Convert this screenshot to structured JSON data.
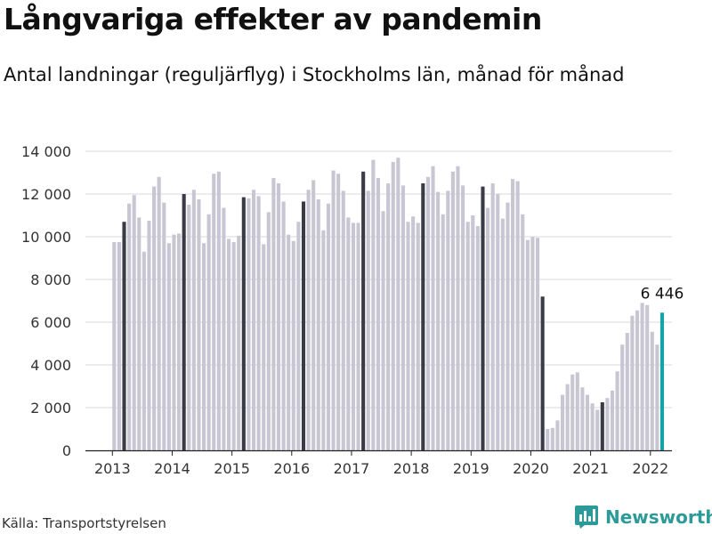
{
  "title": "Långvariga effekter av pandemin",
  "subtitle": "Antal landningar (reguljärflyg) i Stockholms län, månad för månad",
  "source": "Källa: Transportstyrelsen",
  "brand": "Newsworthy",
  "colors": {
    "bar": "#c8c6d3",
    "highlight": "#3b3b48",
    "latest": "#14a3a8",
    "grid": "#d9d9d9",
    "axis": "#222222",
    "brand": "#2b9a98"
  },
  "chart_data": {
    "type": "bar",
    "x_start": "2013-01",
    "ylim": [
      0,
      14000
    ],
    "yticks": [
      0,
      2000,
      4000,
      6000,
      8000,
      10000,
      12000,
      14000
    ],
    "ytick_labels": [
      "0",
      "2 000",
      "4 000",
      "6 000",
      "8 000",
      "10 000",
      "12 000",
      "14 000"
    ],
    "xtick_labels": [
      "2013",
      "2014",
      "2015",
      "2016",
      "2017",
      "2018",
      "2019",
      "2020",
      "2021",
      "2022"
    ],
    "grid": true,
    "highlight_month": "03",
    "annotation": {
      "label": "6 446",
      "target": "last"
    },
    "values": [
      9750,
      9750,
      10700,
      11550,
      11950,
      10900,
      9300,
      10750,
      12350,
      12800,
      11600,
      9700,
      10100,
      10150,
      12000,
      11500,
      12200,
      11750,
      9700,
      11050,
      12950,
      13050,
      11350,
      9900,
      9750,
      10050,
      11850,
      11800,
      12200,
      11900,
      9650,
      11150,
      12750,
      12500,
      11650,
      10100,
      9800,
      10700,
      11650,
      12200,
      12650,
      11750,
      10300,
      11550,
      13100,
      12950,
      12150,
      10900,
      10650,
      10650,
      13050,
      12150,
      13600,
      12750,
      11200,
      12500,
      13500,
      13700,
      12400,
      10700,
      10950,
      10650,
      12500,
      12800,
      13300,
      12100,
      11050,
      12150,
      13050,
      13300,
      12400,
      10700,
      11000,
      10500,
      12350,
      11350,
      12500,
      12000,
      10850,
      11600,
      12700,
      12600,
      11050,
      9850,
      10000,
      9950,
      7200,
      1000,
      1050,
      1400,
      2600,
      3100,
      3550,
      3650,
      2950,
      2600,
      2200,
      1900,
      2250,
      2450,
      2800,
      3700,
      4950,
      5500,
      6300,
      6550,
      6900,
      6800,
      5550,
      4950,
      6446
    ]
  }
}
